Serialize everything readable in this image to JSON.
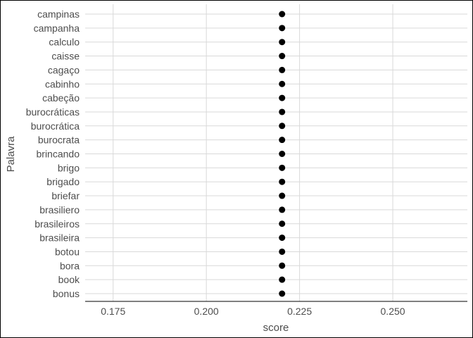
{
  "chart_data": {
    "type": "scatter",
    "title": "",
    "xlabel": "score",
    "ylabel": "Palavra",
    "xlim": [
      0.1675,
      0.27
    ],
    "xticks": [
      "0.175",
      "0.200",
      "0.225",
      "0.250"
    ],
    "xtick_values": [
      0.175,
      0.2,
      0.225,
      0.25
    ],
    "categories": [
      "campinas",
      "campanha",
      "calculo",
      "caisse",
      "cagaço",
      "cabinho",
      "cabeção",
      "burocráticas",
      "burocrática",
      "burocrata",
      "brincando",
      "brigo",
      "brigado",
      "briefar",
      "brasiliero",
      "brasileiros",
      "brasileira",
      "botou",
      "bora",
      "book",
      "bonus"
    ],
    "values": [
      0.2203,
      0.2203,
      0.2203,
      0.2203,
      0.2203,
      0.2203,
      0.2203,
      0.2203,
      0.2203,
      0.2203,
      0.2203,
      0.2203,
      0.2203,
      0.2203,
      0.2203,
      0.2203,
      0.2203,
      0.2203,
      0.2203,
      0.2203,
      0.2203
    ],
    "grid": true,
    "legend": "none",
    "colors": {
      "point": "#000000",
      "grid": "#d9d9d9",
      "text": "#4d4d4d",
      "axis": "#000000"
    }
  }
}
